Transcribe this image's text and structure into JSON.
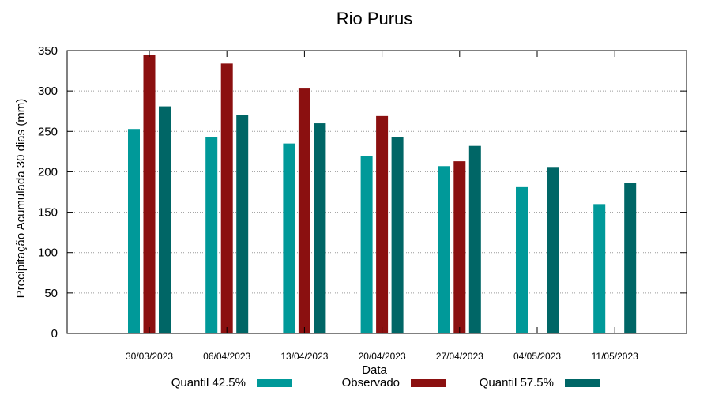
{
  "chart_data": {
    "type": "bar",
    "title": "Rio Purus",
    "xlabel": "Data",
    "ylabel": "Precipitação Acumulada 30 dias (mm)",
    "ylim": [
      0,
      350
    ],
    "yticks": [
      0,
      50,
      100,
      150,
      200,
      250,
      300,
      350
    ],
    "grid": "horizontal dotted",
    "legend_position": "bottom",
    "categories": [
      "30/03/2023",
      "06/04/2023",
      "13/04/2023",
      "20/04/2023",
      "27/04/2023",
      "04/05/2023",
      "11/05/2023"
    ],
    "series": [
      {
        "name": "Quantil 42.5%",
        "color": "#009999",
        "values": [
          253,
          243,
          235,
          219,
          207,
          181,
          160
        ]
      },
      {
        "name": "Observado",
        "color": "#8b1010",
        "values": [
          345,
          334,
          303,
          269,
          213,
          null,
          null
        ]
      },
      {
        "name": "Quantil 57.5%",
        "color": "#006666",
        "values": [
          281,
          270,
          260,
          243,
          232,
          206,
          186
        ]
      }
    ]
  }
}
